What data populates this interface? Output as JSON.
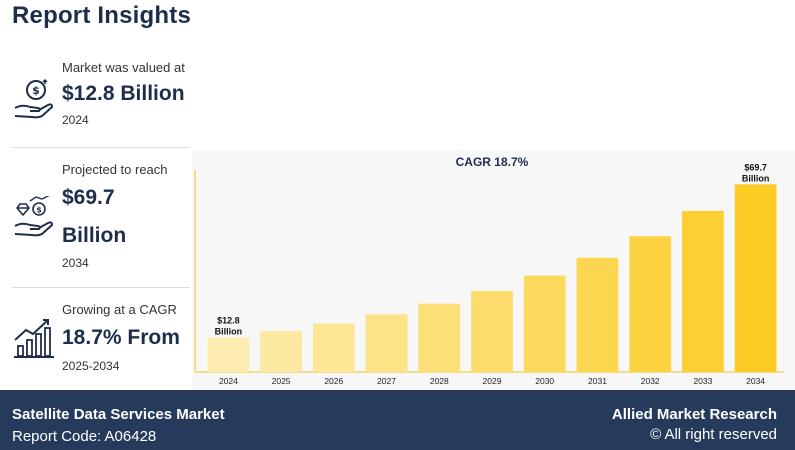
{
  "page_title": "Report Insights",
  "stats": [
    {
      "label": "Market was valued at",
      "value": "$12.8 Billion",
      "year": "2024",
      "icon": "money-hand-icon"
    },
    {
      "label": "Projected to reach",
      "value_line1": "$69.7",
      "value_line2": "Billion",
      "year": "2034",
      "icon": "diamond-hand-icon"
    },
    {
      "label": "Growing at a CAGR",
      "value": "18.7% From",
      "year": "2025-2034",
      "icon": "growth-chart-icon"
    }
  ],
  "chart_data": {
    "type": "bar",
    "title": "CAGR 18.7%",
    "categories": [
      "2024",
      "2025",
      "2026",
      "2027",
      "2028",
      "2029",
      "2030",
      "2031",
      "2032",
      "2033",
      "2034"
    ],
    "values": [
      12.8,
      15.2,
      18.0,
      21.4,
      25.4,
      30.1,
      35.8,
      42.4,
      50.4,
      59.8,
      69.7
    ],
    "data_labels": [
      {
        "index": 0,
        "line1": "$12.8",
        "line2": "Billion"
      },
      {
        "index": 10,
        "line1": "$69.7",
        "line2": "Billion"
      }
    ],
    "ylim": [
      0,
      75
    ],
    "xlabel": "",
    "ylabel": "",
    "grid": false,
    "colors": {
      "start": "#fdecb0",
      "end": "#fccc25"
    }
  },
  "footer": {
    "title": "Satellite Data Services Market",
    "code": "Report Code: A06428",
    "brand": "Allied Market Research",
    "rights": "© All right reserved"
  }
}
